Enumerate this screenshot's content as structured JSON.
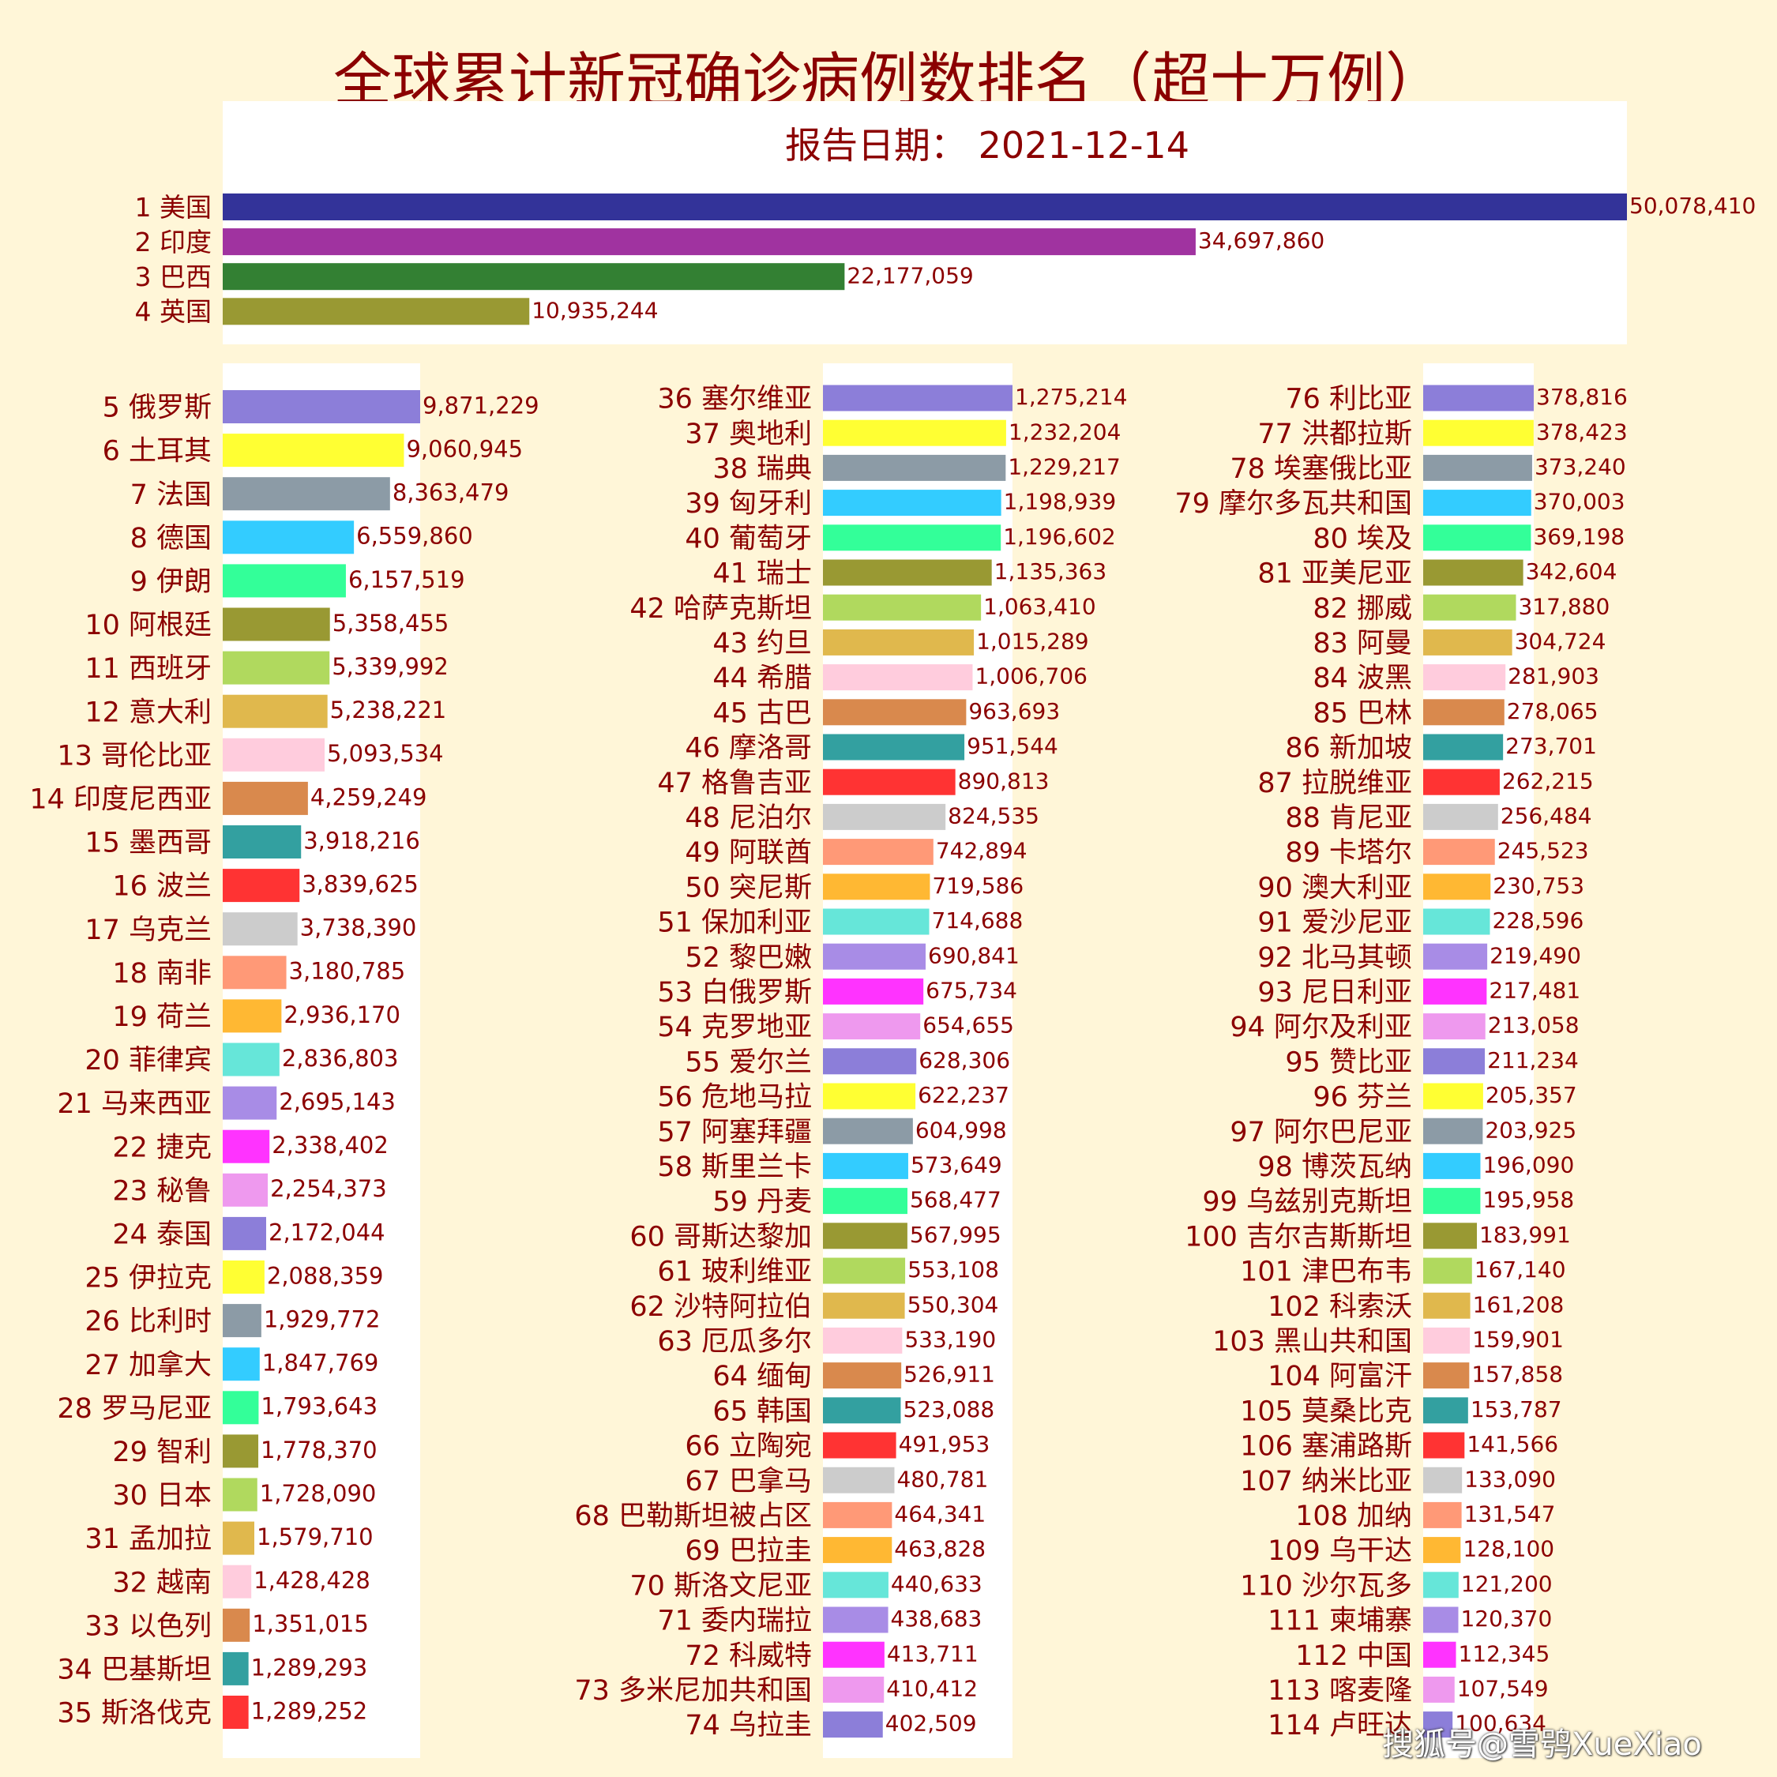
{
  "title": "全球累计新冠确诊病例数排名（超十万例）",
  "report_date": "报告日期： 2021-12-14",
  "watermark": "搜狐号@雪鸮XueXiao",
  "chart_data": {
    "type": "bar",
    "orientation": "horizontal",
    "title": "全球累计新冠确诊病例数排名（超十万例）",
    "subtitle": "报告日期： 2021-12-14",
    "panels": [
      {
        "categories": [
          "1 美国",
          "2 印度",
          "3 巴西",
          "4 英国"
        ],
        "values": [
          50078410,
          34697860,
          22177059,
          10935244
        ],
        "labels": [
          "50,078,410",
          "34,697,860",
          "22,177,059",
          "10,935,244"
        ],
        "colors": [
          "#333399",
          "#A033A0",
          "#338033",
          "#999933"
        ]
      },
      {
        "categories": [
          "5 俄罗斯",
          "6 土耳其",
          "7 法国",
          "8 德国",
          "9 伊朗",
          "10 阿根廷",
          "11 西班牙",
          "12 意大利",
          "13 哥伦比亚",
          "14 印度尼西亚",
          "15 墨西哥",
          "16 波兰",
          "17 乌克兰",
          "18 南非",
          "19 荷兰",
          "20 菲律宾",
          "21 马来西亚",
          "22 捷克",
          "23 秘鲁",
          "24 泰国",
          "25 伊拉克",
          "26 比利时",
          "27 加拿大",
          "28 罗马尼亚",
          "29 智利",
          "30 日本",
          "31 孟加拉",
          "32 越南",
          "33 以色列",
          "34 巴基斯坦",
          "35 斯洛伐克"
        ],
        "values": [
          9871229,
          9060945,
          8363479,
          6559860,
          6157519,
          5358455,
          5339992,
          5238221,
          5093534,
          4259249,
          3918216,
          3839625,
          3738390,
          3180785,
          2936170,
          2836803,
          2695143,
          2338402,
          2254373,
          2172044,
          2088359,
          1929772,
          1847769,
          1793643,
          1778370,
          1728090,
          1579710,
          1428428,
          1351015,
          1289293,
          1289252
        ],
        "labels": [
          "9,871,229",
          "9,060,945",
          "8,363,479",
          "6,559,860",
          "6,157,519",
          "5,358,455",
          "5,339,992",
          "5,238,221",
          "5,093,534",
          "4,259,249",
          "3,918,216",
          "3,839,625",
          "3,738,390",
          "3,180,785",
          "2,936,170",
          "2,836,803",
          "2,695,143",
          "2,338,402",
          "2,254,373",
          "2,172,044",
          "2,088,359",
          "1,929,772",
          "1,847,769",
          "1,793,643",
          "1,778,370",
          "1,728,090",
          "1,579,710",
          "1,428,428",
          "1,351,015",
          "1,289,293",
          "1,289,252"
        ]
      },
      {
        "categories": [
          "36 塞尔维亚",
          "37 奥地利",
          "38 瑞典",
          "39 匈牙利",
          "40 葡萄牙",
          "41 瑞士",
          "42 哈萨克斯坦",
          "43 约旦",
          "44 希腊",
          "45 古巴",
          "46 摩洛哥",
          "47 格鲁吉亚",
          "48 尼泊尔",
          "49 阿联酋",
          "50 突尼斯",
          "51 保加利亚",
          "52 黎巴嫩",
          "53 白俄罗斯",
          "54 克罗地亚",
          "55 爱尔兰",
          "56 危地马拉",
          "57 阿塞拜疆",
          "58 斯里兰卡",
          "59 丹麦",
          "60 哥斯达黎加",
          "61 玻利维亚",
          "62 沙特阿拉伯",
          "63 厄瓜多尔",
          "64 缅甸",
          "65 韩国",
          "66 立陶宛",
          "67 巴拿马",
          "68 巴勒斯坦被占区",
          "69 巴拉圭",
          "70 斯洛文尼亚",
          "71 委内瑞拉",
          "72 科威特",
          "73 多米尼加共和国",
          "74 乌拉圭"
        ],
        "values": [
          1275214,
          1232204,
          1229217,
          1198939,
          1196602,
          1135363,
          1063410,
          1015289,
          1006706,
          963693,
          951544,
          890813,
          824535,
          742894,
          719586,
          714688,
          690841,
          675734,
          654655,
          628306,
          622237,
          604998,
          573649,
          568477,
          567995,
          553108,
          550304,
          533190,
          526911,
          523088,
          491953,
          480781,
          464341,
          463828,
          440633,
          438683,
          413711,
          410412,
          402509
        ],
        "labels": [
          "1,275,214",
          "1,232,204",
          "1,229,217",
          "1,198,939",
          "1,196,602",
          "1,135,363",
          "1,063,410",
          "1,015,289",
          "1,006,706",
          "963,693",
          "951,544",
          "890,813",
          "824,535",
          "742,894",
          "719,586",
          "714,688",
          "690,841",
          "675,734",
          "654,655",
          "628,306",
          "622,237",
          "604,998",
          "573,649",
          "568,477",
          "567,995",
          "553,108",
          "550,304",
          "533,190",
          "526,911",
          "523,088",
          "491,953",
          "480,781",
          "464,341",
          "463,828",
          "440,633",
          "438,683",
          "413,711",
          "410,412",
          "402,509"
        ]
      },
      {
        "categories": [
          "76 利比亚",
          "77 洪都拉斯",
          "78 埃塞俄比亚",
          "79 摩尔多瓦共和国",
          "80 埃及",
          "81 亚美尼亚",
          "82 挪威",
          "83 阿曼",
          "84 波黑",
          "85 巴林",
          "86 新加坡",
          "87 拉脱维亚",
          "88 肯尼亚",
          "89 卡塔尔",
          "90 澳大利亚",
          "91 爱沙尼亚",
          "92 北马其顿",
          "93 尼日利亚",
          "94 阿尔及利亚",
          "95 赞比亚",
          "96 芬兰",
          "97 阿尔巴尼亚",
          "98 博茨瓦纳",
          "99 乌兹别克斯坦",
          "100 吉尔吉斯斯坦",
          "101 津巴布韦",
          "102 科索沃",
          "103 黑山共和国",
          "104 阿富汗",
          "105 莫桑比克",
          "106 塞浦路斯",
          "107 纳米比亚",
          "108 加纳",
          "109 乌干达",
          "110 沙尔瓦多",
          "111 柬埔寨",
          "112 中国",
          "113 喀麦隆",
          "114 卢旺达"
        ],
        "values": [
          378816,
          378423,
          373240,
          370003,
          369198,
          342604,
          317880,
          304724,
          281903,
          278065,
          273701,
          262215,
          256484,
          245523,
          230753,
          228596,
          219490,
          217481,
          213058,
          211234,
          205357,
          203925,
          196090,
          195958,
          183991,
          167140,
          161208,
          159901,
          157858,
          153787,
          141566,
          133090,
          131547,
          128100,
          121200,
          120370,
          112345,
          107549,
          100634
        ],
        "labels": [
          "378,816",
          "378,423",
          "373,240",
          "370,003",
          "369,198",
          "342,604",
          "317,880",
          "304,724",
          "281,903",
          "278,065",
          "273,701",
          "262,215",
          "256,484",
          "245,523",
          "230,753",
          "228,596",
          "219,490",
          "217,481",
          "213,058",
          "211,234",
          "205,357",
          "203,925",
          "196,090",
          "195,958",
          "183,991",
          "167,140",
          "161,208",
          "159,901",
          "157,858",
          "153,787",
          "141,566",
          "133,090",
          "131,547",
          "128,100",
          "121,200",
          "120,370",
          "112,345",
          "107,549",
          "100,634"
        ]
      }
    ],
    "palette": [
      "#8C7ED9",
      "#FFFF33",
      "#8C9BA6",
      "#33CCFF",
      "#33FF99",
      "#999933",
      "#B0D95E",
      "#E0B84D",
      "#FFCCDD",
      "#D9894D",
      "#33A0A0",
      "#FF3333",
      "#CCCCCC",
      "#FF9977",
      "#FFB833",
      "#66E6D9",
      "#A88CE6",
      "#FF33FF",
      "#EE99EE"
    ],
    "grid": false,
    "legend": "none"
  }
}
